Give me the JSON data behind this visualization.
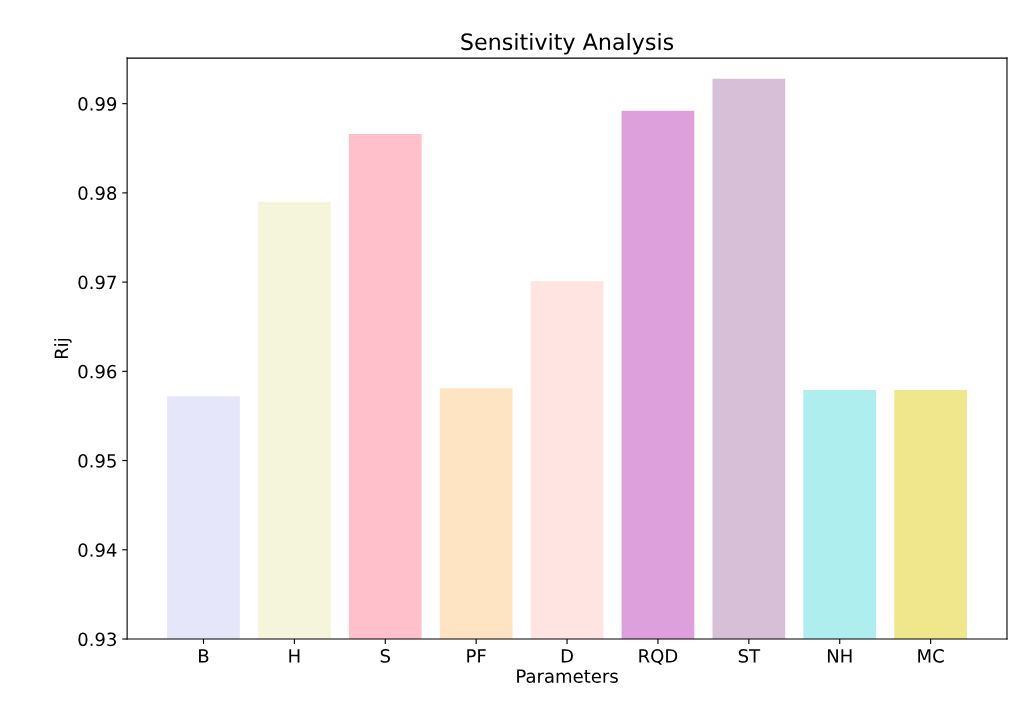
{
  "chart_data": {
    "type": "bar",
    "title": "Sensitivity Analysis",
    "xlabel": "Parameters",
    "ylabel": "Rij",
    "categories": [
      "B",
      "H",
      "S",
      "PF",
      "D",
      "RQD",
      "ST",
      "NH",
      "MC"
    ],
    "values": [
      0.9572,
      0.979,
      0.9866,
      0.9581,
      0.9701,
      0.9892,
      0.9928,
      0.9579,
      0.9579
    ],
    "colors": [
      "#e6e6fa",
      "#f5f5dc",
      "#ffc0cb",
      "#ffe4c4",
      "#ffe4e1",
      "#dda0dd",
      "#d8bfd8",
      "#afeeee",
      "#f0e68c"
    ],
    "ylim": [
      0.93,
      0.9951
    ],
    "yticks": [
      0.93,
      0.94,
      0.95,
      0.96,
      0.97,
      0.98,
      0.99
    ],
    "grid": false,
    "legend": false
  }
}
